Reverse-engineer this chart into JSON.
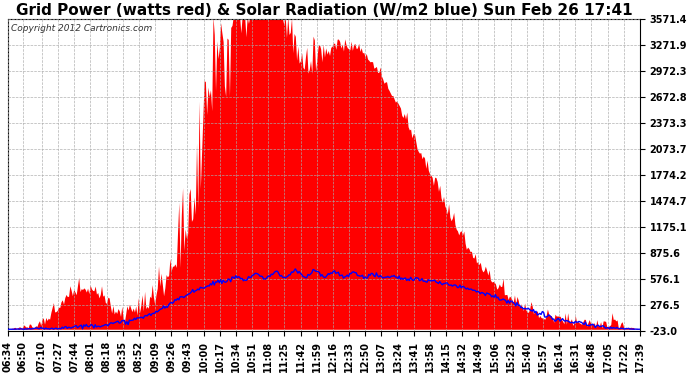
{
  "title": "Grid Power (watts red) & Solar Radiation (W/m2 blue) Sun Feb 26 17:41",
  "copyright": "Copyright 2012 Cartronics.com",
  "yticks": [
    -23.0,
    276.5,
    576.1,
    875.6,
    1175.1,
    1474.7,
    1774.2,
    2073.7,
    2373.3,
    2672.8,
    2972.3,
    3271.9,
    3571.4
  ],
  "ymin": -23.0,
  "ymax": 3571.4,
  "xtick_labels": [
    "06:34",
    "06:50",
    "07:10",
    "07:27",
    "07:44",
    "08:01",
    "08:18",
    "08:35",
    "08:52",
    "09:09",
    "09:26",
    "09:43",
    "10:00",
    "10:17",
    "10:34",
    "10:51",
    "11:08",
    "11:25",
    "11:42",
    "11:59",
    "12:16",
    "12:33",
    "12:50",
    "13:07",
    "13:24",
    "13:41",
    "13:58",
    "14:15",
    "14:32",
    "14:49",
    "15:06",
    "15:23",
    "15:40",
    "15:57",
    "16:14",
    "16:31",
    "16:48",
    "17:05",
    "17:22",
    "17:39"
  ],
  "bg_color": "#ffffff",
  "plot_bg_color": "#ffffff",
  "grid_color": "#aaaaaa",
  "red_color": "#ff0000",
  "blue_color": "#0000ff",
  "title_fontsize": 11,
  "tick_fontsize": 7,
  "copyright_fontsize": 6.5
}
